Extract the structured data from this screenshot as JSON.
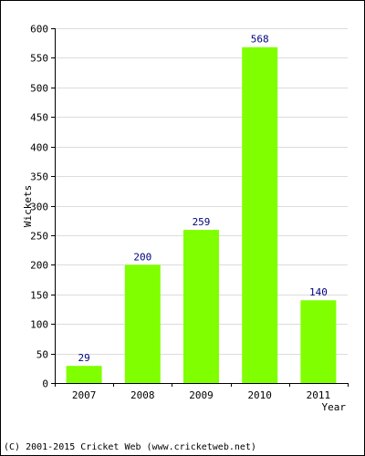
{
  "chart_data": {
    "type": "bar",
    "categories": [
      "2007",
      "2008",
      "2009",
      "2010",
      "2011"
    ],
    "values": [
      29,
      200,
      259,
      568,
      140
    ],
    "data_labels": [
      "29",
      "200",
      "259",
      "568",
      "140"
    ],
    "xlabel": "Year",
    "ylabel": "Wickets",
    "ylim": [
      0,
      600
    ],
    "yticks": [
      0,
      50,
      100,
      150,
      200,
      250,
      300,
      350,
      400,
      450,
      500,
      550,
      600
    ],
    "grid": true,
    "bar_color": "#80ff00",
    "label_color": "#000080",
    "grid_color": "#dcdcdc"
  },
  "footer": {
    "text": "(C) 2001-2015 Cricket Web (www.cricketweb.net)"
  }
}
